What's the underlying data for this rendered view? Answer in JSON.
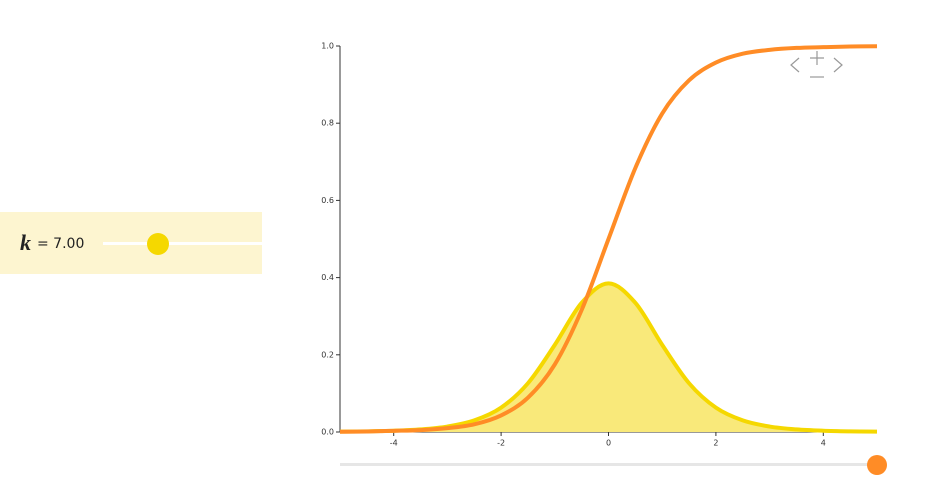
{
  "parameter": {
    "name": "k",
    "text": "= 7.00"
  },
  "chart_data": {
    "type": "line",
    "x": [
      -5,
      -4.5,
      -4,
      -3.5,
      -3,
      -2.5,
      -2,
      -1.5,
      -1,
      -0.5,
      0,
      0.5,
      1,
      1.5,
      2,
      2.5,
      3,
      3.5,
      4,
      4.5,
      5
    ],
    "series": [
      {
        "color": "#f5d800",
        "fill": "#f9e97a",
        "area": true,
        "values": [
          0.0009,
          0.0017,
          0.0033,
          0.0067,
          0.0141,
          0.03,
          0.0631,
          0.1263,
          0.2257,
          0.3346,
          0.385,
          0.3346,
          0.2257,
          0.1263,
          0.0631,
          0.03,
          0.0141,
          0.0067,
          0.0033,
          0.0017,
          0.0009
        ]
      },
      {
        "color": "#ff8c26",
        "area": false,
        "values": [
          0.0008,
          0.0014,
          0.003,
          0.005,
          0.01,
          0.02,
          0.043,
          0.089,
          0.175,
          0.316,
          0.5,
          0.684,
          0.825,
          0.911,
          0.957,
          0.98,
          0.99,
          0.995,
          0.997,
          0.9986,
          0.9992
        ]
      }
    ],
    "xlim": [
      -5,
      5
    ],
    "ylim": [
      0,
      1
    ],
    "xticks": [
      -4,
      -2,
      0,
      2,
      4
    ],
    "yticks": [
      {
        "value": 0,
        "label": "0.0"
      },
      {
        "value": 0.2,
        "label": "0.2"
      },
      {
        "value": 0.4,
        "label": "0.4"
      },
      {
        "value": 0.6,
        "label": "0.6"
      },
      {
        "value": 0.8,
        "label": "0.8"
      },
      {
        "value": 1,
        "label": "1.0"
      }
    ]
  }
}
